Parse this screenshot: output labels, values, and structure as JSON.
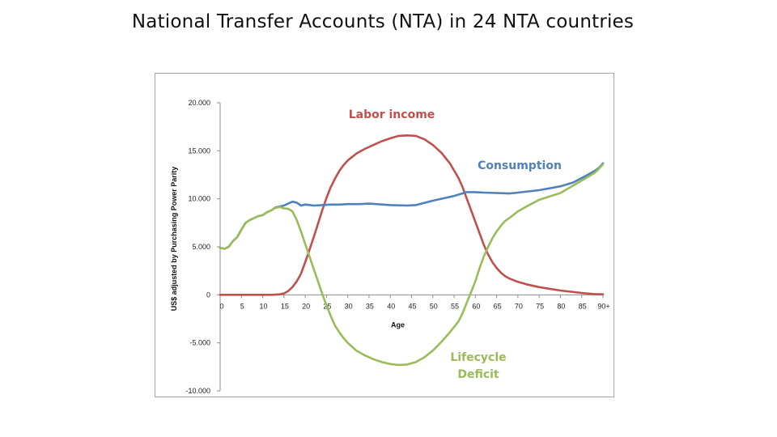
{
  "slide": {
    "title": "National Transfer Accounts (NTA) in 24 NTA countries"
  },
  "chart_data": {
    "type": "line",
    "xlabel": "Age",
    "ylabel": "US$ adjusted by Purchasing Power Parity",
    "xlim": [
      0,
      90
    ],
    "ylim": [
      -10000,
      20000
    ],
    "yticks": [
      20000,
      15000,
      10000,
      5000,
      0,
      -5000,
      -10000
    ],
    "ytick_labels": [
      "20.000",
      "15.000",
      "10.000",
      "5.000",
      "0",
      "-5.000",
      "-10.000"
    ],
    "xticks": [
      0,
      5,
      10,
      15,
      20,
      25,
      30,
      35,
      40,
      45,
      50,
      55,
      60,
      65,
      70,
      75,
      80,
      85,
      90
    ],
    "xtick_labels": [
      "0",
      "5",
      "10",
      "15",
      "20",
      "25",
      "30",
      "35",
      "40",
      "45",
      "50",
      "55",
      "60",
      "65",
      "70",
      "75",
      "80",
      "85",
      "90+"
    ],
    "grid": false,
    "legend": "none",
    "series": [
      {
        "name": "Labor income",
        "label_lines": [
          "Labor income"
        ],
        "color": "#c0504d",
        "x": [
          0,
          5,
          10,
          12,
          13,
          14,
          15,
          16,
          17,
          18,
          19,
          20,
          21,
          22,
          23,
          24,
          25,
          26,
          27,
          28,
          29,
          30,
          32,
          34,
          36,
          38,
          40,
          42,
          44,
          46,
          48,
          50,
          52,
          54,
          56,
          57,
          58,
          59,
          60,
          61,
          62,
          63,
          64,
          65,
          66,
          67,
          68,
          70,
          72,
          75,
          80,
          85,
          88,
          90
        ],
        "y": [
          0,
          0,
          0,
          0,
          20,
          50,
          150,
          400,
          800,
          1400,
          2200,
          3400,
          4700,
          6000,
          7400,
          8800,
          10100,
          11200,
          12100,
          12900,
          13500,
          14000,
          14700,
          15200,
          15600,
          16000,
          16300,
          16550,
          16600,
          16550,
          16200,
          15600,
          14800,
          13700,
          12200,
          11200,
          10000,
          8800,
          7600,
          6400,
          5200,
          4200,
          3400,
          2800,
          2300,
          1950,
          1700,
          1350,
          1100,
          800,
          450,
          200,
          80,
          50
        ]
      },
      {
        "name": "Consumption",
        "label_lines": [
          "Consumption"
        ],
        "color": "#4f81bd",
        "x": [
          0,
          1,
          2,
          3,
          4,
          5,
          6,
          7,
          8,
          9,
          10,
          11,
          12,
          13,
          14,
          15,
          16,
          17,
          18,
          19,
          20,
          22,
          24,
          26,
          28,
          30,
          33,
          35,
          40,
          44,
          46,
          50,
          55,
          58,
          60,
          62,
          65,
          68,
          70,
          75,
          80,
          83,
          86,
          88,
          89,
          90
        ],
        "y": [
          4900,
          4800,
          5000,
          5600,
          6000,
          6800,
          7500,
          7800,
          8000,
          8200,
          8300,
          8600,
          8800,
          9100,
          9200,
          9300,
          9500,
          9700,
          9600,
          9300,
          9400,
          9300,
          9350,
          9400,
          9400,
          9450,
          9450,
          9500,
          9350,
          9300,
          9350,
          9800,
          10300,
          10700,
          10700,
          10650,
          10600,
          10550,
          10650,
          10900,
          11300,
          11700,
          12400,
          12900,
          13200,
          13700
        ]
      },
      {
        "name": "Lifecycle Deficit",
        "label_lines": [
          "Lifecycle",
          "Deficit"
        ],
        "color": "#9bbb59",
        "x": [
          0,
          1,
          2,
          3,
          4,
          5,
          6,
          7,
          8,
          9,
          10,
          11,
          12,
          13,
          14,
          15,
          16,
          17,
          18,
          19,
          20,
          21,
          22,
          23,
          24,
          25,
          26,
          27,
          28,
          29,
          30,
          32,
          34,
          36,
          38,
          40,
          42,
          44,
          46,
          48,
          50,
          52,
          54,
          56,
          57,
          58,
          59,
          60,
          61,
          62,
          63,
          64,
          65,
          66,
          67,
          68,
          70,
          72,
          75,
          80,
          85,
          88,
          89,
          90
        ],
        "y": [
          4900,
          4800,
          5000,
          5600,
          6000,
          6800,
          7500,
          7800,
          8000,
          8200,
          8300,
          8600,
          8800,
          9050,
          9150,
          9000,
          8950,
          8700,
          7800,
          6600,
          5300,
          4000,
          2700,
          1400,
          100,
          -1100,
          -2200,
          -3200,
          -3900,
          -4500,
          -5000,
          -5800,
          -6300,
          -6700,
          -7000,
          -7200,
          -7300,
          -7250,
          -7000,
          -6500,
          -5800,
          -4900,
          -3900,
          -2800,
          -1900,
          -800,
          300,
          1400,
          2800,
          4000,
          5000,
          5900,
          6600,
          7200,
          7700,
          8000,
          8700,
          9200,
          9900,
          10600,
          11900,
          12700,
          13100,
          13600
        ]
      }
    ]
  }
}
